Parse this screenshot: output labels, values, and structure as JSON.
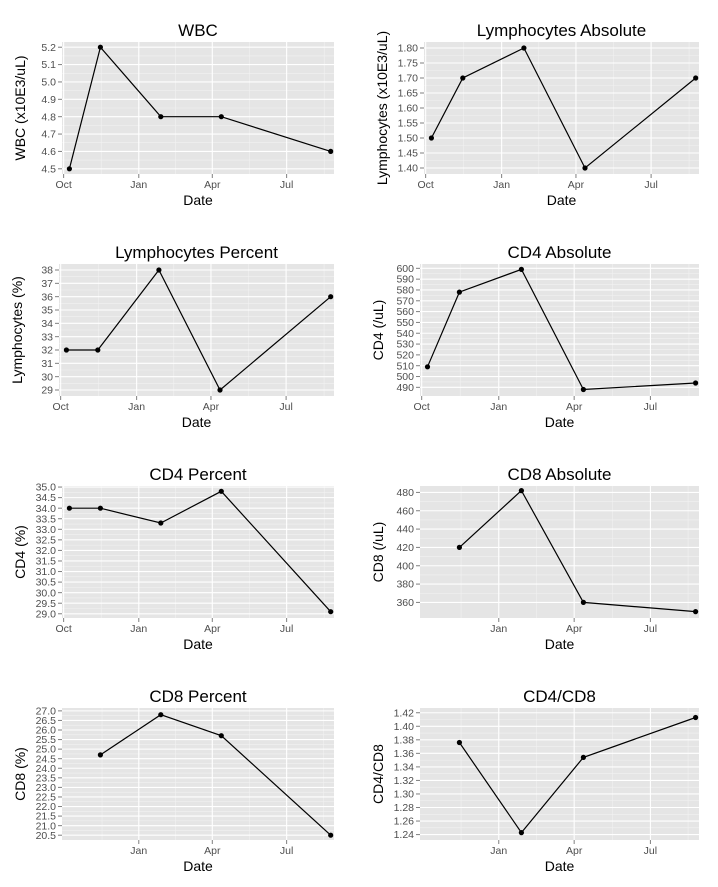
{
  "chart_data": [
    {
      "type": "line",
      "title": "WBC",
      "xlabel": "Date",
      "ylabel": "WBC (x10E3/uL)",
      "x_ticks": [
        "Oct",
        "Jan",
        "Apr",
        "Jul"
      ],
      "y_ticks": [
        "4.5",
        "4.6",
        "4.7",
        "4.8",
        "4.9",
        "5.0",
        "5.1",
        "5.2"
      ],
      "ylim": [
        4.47,
        5.23
      ],
      "series": [
        {
          "name": "WBC",
          "x": [
            "Oct 8",
            "Nov 15",
            "Jan 28",
            "Apr 12",
            "Aug 24"
          ],
          "values": [
            4.5,
            5.2,
            4.8,
            4.8,
            4.6
          ]
        }
      ]
    },
    {
      "type": "line",
      "title": "Lymphocytes Absolute",
      "xlabel": "Date",
      "ylabel": "Lymphocytes (x10E3/uL)",
      "x_ticks": [
        "Oct",
        "Jan",
        "Apr",
        "Jul"
      ],
      "y_ticks": [
        "1.40",
        "1.45",
        "1.50",
        "1.55",
        "1.60",
        "1.65",
        "1.70",
        "1.75",
        "1.80"
      ],
      "ylim": [
        1.38,
        1.82
      ],
      "series": [
        {
          "name": "Lymphocytes Absolute",
          "x": [
            "Oct 8",
            "Nov 15",
            "Jan 28",
            "Apr 12",
            "Aug 24"
          ],
          "values": [
            1.5,
            1.7,
            1.8,
            1.4,
            1.7
          ]
        }
      ]
    },
    {
      "type": "line",
      "title": "Lymphocytes Percent",
      "xlabel": "Date",
      "ylabel": "Lymphocytes (%)",
      "x_ticks": [
        "Oct",
        "Jan",
        "Apr",
        "Jul"
      ],
      "y_ticks": [
        "29",
        "30",
        "31",
        "32",
        "33",
        "34",
        "35",
        "36",
        "37",
        "38"
      ],
      "ylim": [
        28.55,
        38.45
      ],
      "series": [
        {
          "name": "Lymphocytes Percent",
          "x": [
            "Oct 8",
            "Nov 15",
            "Jan 28",
            "Apr 12",
            "Aug 24"
          ],
          "values": [
            32,
            32,
            38,
            29,
            36
          ]
        }
      ]
    },
    {
      "type": "line",
      "title": "CD4 Absolute",
      "xlabel": "Date",
      "ylabel": "CD4 (/uL)",
      "x_ticks": [
        "Oct",
        "Jan",
        "Apr",
        "Jul"
      ],
      "y_ticks": [
        "490",
        "500",
        "510",
        "520",
        "530",
        "540",
        "550",
        "560",
        "570",
        "580",
        "590",
        "600"
      ],
      "ylim": [
        482,
        604
      ],
      "series": [
        {
          "name": "CD4 Absolute",
          "x": [
            "Oct 8",
            "Nov 15",
            "Jan 28",
            "Apr 12",
            "Aug 24"
          ],
          "values": [
            509,
            578,
            599,
            488,
            494
          ]
        }
      ]
    },
    {
      "type": "line",
      "title": "CD4 Percent",
      "xlabel": "Date",
      "ylabel": "CD4 (%)",
      "x_ticks": [
        "Oct",
        "Jan",
        "Apr",
        "Jul"
      ],
      "y_ticks": [
        "29.0",
        "29.5",
        "30.0",
        "30.5",
        "31.0",
        "31.5",
        "32.0",
        "32.5",
        "33.0",
        "33.5",
        "34.0",
        "34.5",
        "35.0"
      ],
      "ylim": [
        28.8,
        35.05
      ],
      "series": [
        {
          "name": "CD4 Percent",
          "x": [
            "Oct 8",
            "Nov 15",
            "Jan 28",
            "Apr 12",
            "Aug 24"
          ],
          "values": [
            34.0,
            34.0,
            33.3,
            34.8,
            29.1
          ]
        }
      ]
    },
    {
      "type": "line",
      "title": "CD8 Absolute",
      "xlabel": "Date",
      "ylabel": "CD8 (/uL)",
      "x_ticks": [
        "Jan",
        "Apr",
        "Jul"
      ],
      "y_ticks": [
        "360",
        "380",
        "400",
        "420",
        "440",
        "460",
        "480"
      ],
      "ylim": [
        343,
        487
      ],
      "series": [
        {
          "name": "CD8 Absolute",
          "x": [
            "Nov 15",
            "Jan 28",
            "Apr 12",
            "Aug 24"
          ],
          "values": [
            420,
            482,
            360,
            350
          ]
        }
      ]
    },
    {
      "type": "line",
      "title": "CD8 Percent",
      "xlabel": "Date",
      "ylabel": "CD8 (%)",
      "x_ticks": [
        "Jan",
        "Apr",
        "Jul"
      ],
      "y_ticks": [
        "20.5",
        "21.0",
        "21.5",
        "22.0",
        "22.5",
        "23.0",
        "23.5",
        "24.0",
        "24.5",
        "25.0",
        "25.5",
        "26.0",
        "26.5",
        "27.0"
      ],
      "ylim": [
        20.25,
        27.15
      ],
      "series": [
        {
          "name": "CD8 Percent",
          "x": [
            "Nov 15",
            "Jan 28",
            "Apr 12",
            "Aug 24"
          ],
          "values": [
            24.7,
            26.8,
            25.7,
            20.5
          ]
        }
      ]
    },
    {
      "type": "line",
      "title": "CD4/CD8",
      "xlabel": "Date",
      "ylabel": "CD4/CD8",
      "x_ticks": [
        "Jan",
        "Apr",
        "Jul"
      ],
      "y_ticks": [
        "1.24",
        "1.26",
        "1.28",
        "1.30",
        "1.32",
        "1.34",
        "1.36",
        "1.38",
        "1.40",
        "1.42"
      ],
      "ylim": [
        1.232,
        1.427
      ],
      "series": [
        {
          "name": "CD4/CD8",
          "x": [
            "Nov 15",
            "Jan 28",
            "Apr 12",
            "Aug 24"
          ],
          "values": [
            1.376,
            1.243,
            1.354,
            1.413
          ]
        }
      ]
    }
  ]
}
